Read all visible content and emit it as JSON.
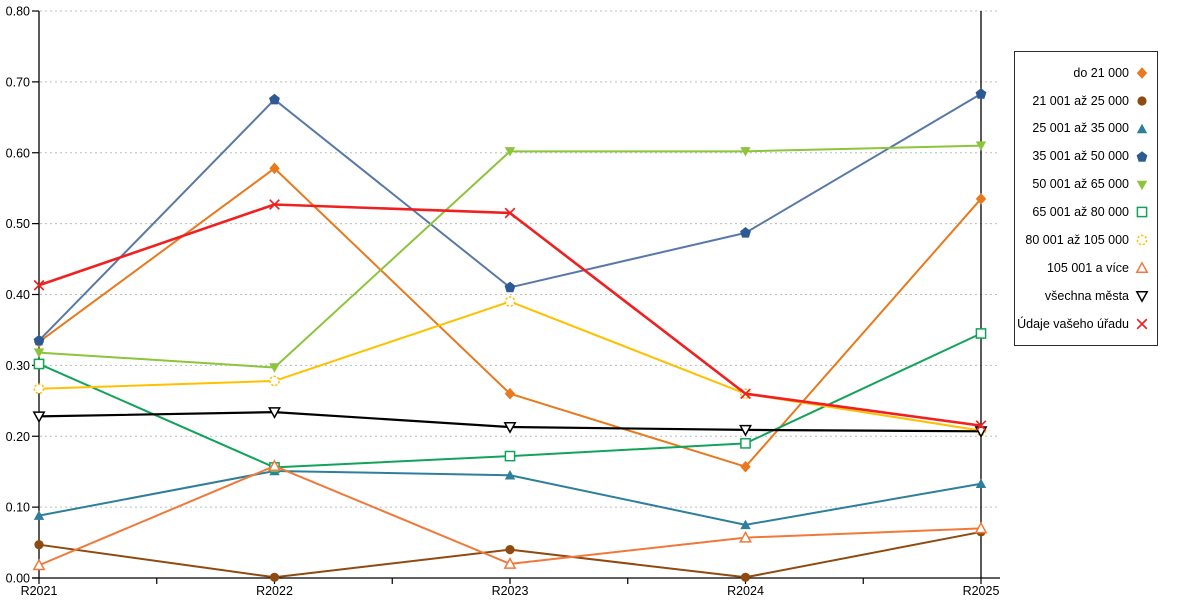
{
  "chart_data": {
    "type": "line",
    "title": "",
    "xlabel": "",
    "ylabel": "",
    "grid": "horizontal-dashed",
    "legend_position": "right",
    "x_categories": [
      "R2021",
      "R2022",
      "R2023",
      "R2024",
      "R2025"
    ],
    "y_axis": {
      "min": 0.0,
      "max": 0.8,
      "step": 0.1,
      "tick_labels": [
        "0.00",
        "0.10",
        "0.20",
        "0.30",
        "0.40",
        "0.50",
        "0.60",
        "0.70",
        "0.80"
      ]
    },
    "series": [
      {
        "name": "do 21 000",
        "marker": "diamond",
        "filled": true,
        "color": "#E8791D",
        "values": [
          0.333,
          0.578,
          0.26,
          0.157,
          0.535
        ]
      },
      {
        "name": "21 001 až 25 000",
        "marker": "circle",
        "filled": true,
        "color": "#8F4A10",
        "values": [
          0.047,
          0.001,
          0.04,
          0.001,
          0.065
        ]
      },
      {
        "name": "25 001 až 35 000",
        "marker": "triangle-up",
        "filled": true,
        "color": "#2E7F9B",
        "values": [
          0.088,
          0.151,
          0.145,
          0.075,
          0.133
        ]
      },
      {
        "name": "35 001 až 50 000",
        "marker": "pentagon",
        "filled": true,
        "color": "#2E5A93",
        "line_color": "#5878A8",
        "values": [
          0.335,
          0.675,
          0.41,
          0.487,
          0.683
        ]
      },
      {
        "name": "50 001 až 65 000",
        "marker": "triangle-down",
        "filled": true,
        "color": "#8CC43C",
        "values": [
          0.318,
          0.297,
          0.602,
          0.602,
          0.61
        ]
      },
      {
        "name": "65 001 až 80 000",
        "marker": "square",
        "filled": false,
        "color": "#12A35B",
        "values": [
          0.302,
          0.156,
          0.172,
          0.19,
          0.345
        ]
      },
      {
        "name": "80 001 až 105 000",
        "marker": "circle",
        "filled": false,
        "dashed_marker": true,
        "color": "#FFC000",
        "values": [
          0.267,
          0.278,
          0.39,
          0.26,
          0.208
        ]
      },
      {
        "name": "105 001 a více",
        "marker": "triangle-up",
        "filled": false,
        "color": "#F0793A",
        "values": [
          0.018,
          0.158,
          0.02,
          0.057,
          0.07
        ]
      },
      {
        "name": "všechna města",
        "marker": "triangle-down",
        "filled": false,
        "color": "#000000",
        "line_width": 2.2,
        "values": [
          0.228,
          0.234,
          0.213,
          0.209,
          0.207
        ]
      },
      {
        "name": "Údaje vašeho úřadu",
        "marker": "x",
        "filled": false,
        "color": "#F02020",
        "line_width": 2.6,
        "values": [
          0.413,
          0.527,
          0.515,
          0.26,
          0.215
        ]
      }
    ],
    "colors": {
      "gridline": "#BDBDBD",
      "axis": "#000000",
      "background": "#FFFFFF"
    }
  }
}
